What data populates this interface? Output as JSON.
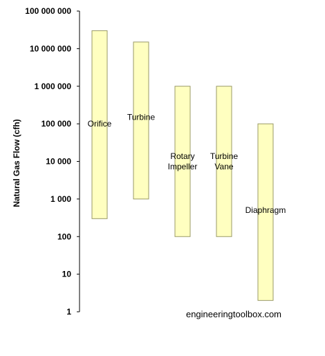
{
  "chart_data": {
    "type": "bar",
    "subtype": "floating-range",
    "title": "",
    "xlabel": "",
    "ylabel": "Natural Gas Flow (cfh)",
    "yscale": "log",
    "ylim": [
      1,
      100000000
    ],
    "y_ticks": [
      1,
      10,
      100,
      1000,
      10000,
      100000,
      1000000,
      10000000,
      100000000
    ],
    "y_tick_labels": [
      "1",
      "10",
      "100",
      "1 000",
      "10 000",
      "100 000",
      "1 000 000",
      "10 000 000",
      "100 000 000"
    ],
    "grid": false,
    "bar_color": "#ffffc0",
    "bar_edge_color": "#999966",
    "categories": [
      {
        "name": "Orifice",
        "label_lines": [
          "Orifice"
        ],
        "min": 300,
        "max": 30000000,
        "label_at": 100000
      },
      {
        "name": "Turbine",
        "label_lines": [
          "Turbine"
        ],
        "min": 1000,
        "max": 15000000,
        "label_at": 150000
      },
      {
        "name": "Rotary Impeller",
        "label_lines": [
          "Rotary",
          "Impeller"
        ],
        "min": 100,
        "max": 1000000,
        "label_at": 10000
      },
      {
        "name": "Turbine Vane",
        "label_lines": [
          "Turbine",
          "Vane"
        ],
        "min": 100,
        "max": 1000000,
        "label_at": 10000
      },
      {
        "name": "Diaphragm",
        "label_lines": [
          "Diaphragm"
        ],
        "min": 2,
        "max": 100000,
        "label_at": 500
      }
    ]
  },
  "watermark": "engineeringtoolbox.com"
}
